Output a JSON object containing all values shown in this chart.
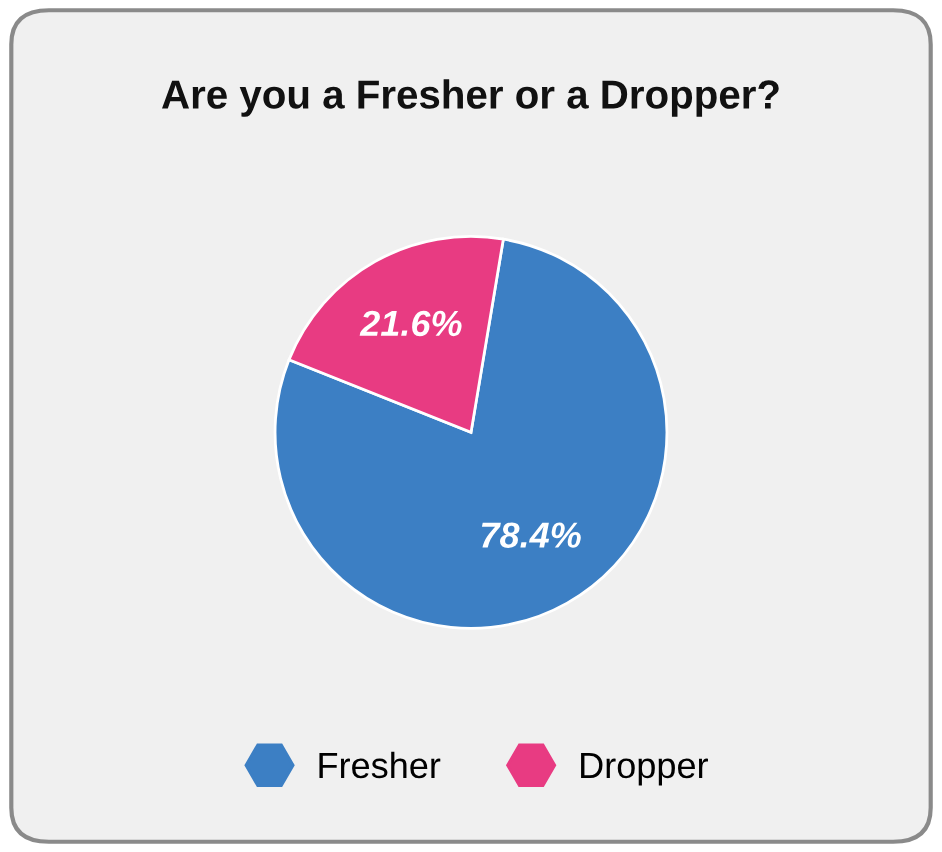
{
  "chart_data": {
    "type": "pie",
    "title": "Are you a Fresher or a Dropper?",
    "categories": [
      "Fresher",
      "Dropper"
    ],
    "values": [
      78.4,
      21.6
    ],
    "colors": [
      "#3c7fc4",
      "#e83b82"
    ],
    "value_labels": [
      "78.4%",
      "21.6%"
    ],
    "legend": "bottom"
  }
}
